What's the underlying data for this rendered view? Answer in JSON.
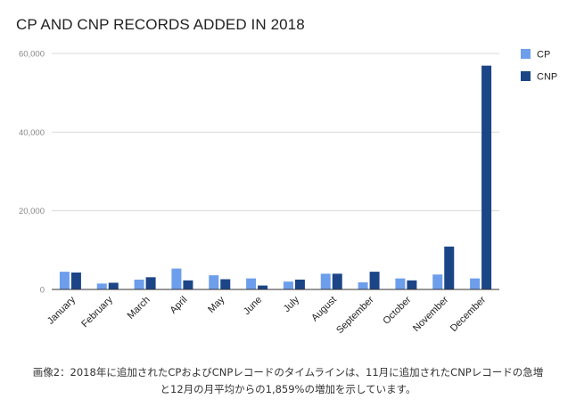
{
  "chart_data": {
    "type": "bar",
    "title": "CP AND CNP RECORDS ADDED IN 2018",
    "categories": [
      "January",
      "February",
      "March",
      "April",
      "May",
      "June",
      "July",
      "August",
      "September",
      "October",
      "November",
      "December"
    ],
    "series": [
      {
        "name": "CP",
        "color": "#6d9eeb",
        "values": [
          4500,
          1500,
          2500,
          5300,
          3600,
          2800,
          2000,
          4000,
          1800,
          2800,
          3800,
          2800
        ]
      },
      {
        "name": "CNP",
        "color": "#1c4587",
        "values": [
          4300,
          1700,
          3100,
          2300,
          2600,
          1000,
          2500,
          4000,
          4500,
          2300,
          10900,
          56900
        ]
      }
    ],
    "y_ticks": [
      "0",
      "20,000",
      "40,000",
      "60,000"
    ],
    "ylim": [
      0,
      60000
    ],
    "grid": true,
    "legend": "right",
    "xlabel": "",
    "ylabel": ""
  },
  "caption": {
    "line1": "画像2：2018年に追加されたCPおよびCNPレコードのタイムラインは、11月に追加されたCNPレコードの急増",
    "line2": "と12月の月平均からの1,859%の増加を示しています。"
  }
}
